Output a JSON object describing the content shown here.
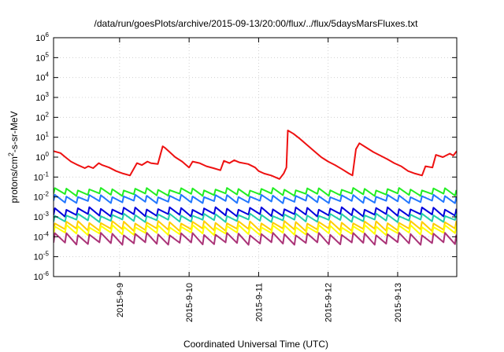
{
  "chart_data": {
    "type": "line",
    "title": "/data/run/goesPlots/archive/2015-09-13/20:00/flux/../flux/5daysMarsFluxes.txt",
    "xlabel": "Coordinated Universal Time (UTC)",
    "ylabel_main": "protons/cm",
    "ylabel_sup": "2",
    "ylabel_rest": "-s-sr-MeV",
    "y_scale": "log",
    "ylim": [
      1e-06,
      1000000.0
    ],
    "y_ticks": [
      {
        "base": "10",
        "exp": "6",
        "value": 1000000.0
      },
      {
        "base": "10",
        "exp": "5",
        "value": 100000.0
      },
      {
        "base": "10",
        "exp": "4",
        "value": 10000.0
      },
      {
        "base": "10",
        "exp": "3",
        "value": 1000.0
      },
      {
        "base": "10",
        "exp": "2",
        "value": 100.0
      },
      {
        "base": "10",
        "exp": "1",
        "value": 10.0
      },
      {
        "base": "10",
        "exp": "0",
        "value": 1
      },
      {
        "base": "10",
        "exp": "-1",
        "value": 0.1
      },
      {
        "base": "10",
        "exp": "-2",
        "value": 0.01
      },
      {
        "base": "10",
        "exp": "-3",
        "value": 0.001
      },
      {
        "base": "10",
        "exp": "-4",
        "value": 0.0001
      },
      {
        "base": "10",
        "exp": "-5",
        "value": 1e-05
      },
      {
        "base": "10",
        "exp": "-6",
        "value": 1e-06
      }
    ],
    "xlim": [
      8.05,
      13.85
    ],
    "x_ticks": [
      {
        "label": "2015-9-9",
        "value": 9
      },
      {
        "label": "2015-9-10",
        "value": 10
      },
      {
        "label": "2015-9-11",
        "value": 11
      },
      {
        "label": "2015-9-12",
        "value": 12
      },
      {
        "label": "2015-9-13",
        "value": 13
      }
    ],
    "grid": true,
    "series": [
      {
        "color": "#ee1111",
        "x": [
          8.05,
          8.15,
          8.22,
          8.3,
          8.4,
          8.5,
          8.55,
          8.62,
          8.7,
          8.75,
          8.85,
          8.95,
          9.05,
          9.15,
          9.25,
          9.32,
          9.4,
          9.45,
          9.55,
          9.62,
          9.65,
          9.72,
          9.8,
          9.9,
          10.0,
          10.05,
          10.15,
          10.25,
          10.35,
          10.45,
          10.5,
          10.58,
          10.65,
          10.72,
          10.85,
          10.95,
          11.0,
          11.08,
          11.18,
          11.3,
          11.36,
          11.4,
          11.42,
          11.5,
          11.6,
          11.7,
          11.8,
          11.9,
          12.0,
          12.1,
          12.2,
          12.3,
          12.35,
          12.4,
          12.45,
          12.55,
          12.65,
          12.75,
          12.85,
          12.95,
          13.05,
          13.15,
          13.25,
          13.35,
          13.4,
          13.5,
          13.55,
          13.65,
          13.75,
          13.8,
          13.85
        ],
        "values": [
          2.0,
          1.6,
          1.0,
          0.6,
          0.4,
          0.28,
          0.35,
          0.28,
          0.5,
          0.4,
          0.3,
          0.2,
          0.15,
          0.12,
          0.5,
          0.4,
          0.6,
          0.5,
          0.45,
          3.5,
          3.0,
          1.8,
          1.0,
          0.6,
          0.3,
          0.6,
          0.5,
          0.35,
          0.28,
          0.22,
          0.65,
          0.5,
          0.7,
          0.55,
          0.45,
          0.3,
          0.2,
          0.15,
          0.12,
          0.08,
          0.15,
          0.3,
          22,
          15,
          8,
          4,
          2,
          1.0,
          0.6,
          0.4,
          0.25,
          0.15,
          0.12,
          2.5,
          5.0,
          3.0,
          1.8,
          1.2,
          0.8,
          0.5,
          0.35,
          0.2,
          0.15,
          0.12,
          0.35,
          0.3,
          1.3,
          1.0,
          1.5,
          1.2,
          2.0
        ]
      },
      {
        "color": "#22ee22",
        "base": 0.018,
        "amp": 1.9
      },
      {
        "color": "#2277ff",
        "base": 0.008,
        "amp": 2.0
      },
      {
        "color": "#0000dd",
        "base": 0.0018,
        "amp": 2.2
      },
      {
        "color": "#22ccaa",
        "base": 0.0009,
        "amp": 2.0
      },
      {
        "color": "#ffcc00",
        "base": 0.00035,
        "amp": 2.4
      },
      {
        "color": "#ffff00",
        "base": 0.00022,
        "amp": 2.4
      },
      {
        "color": "#aa3377",
        "base": 8e-05,
        "amp": 3.0
      }
    ],
    "periodic_cycle_days": 0.165
  }
}
